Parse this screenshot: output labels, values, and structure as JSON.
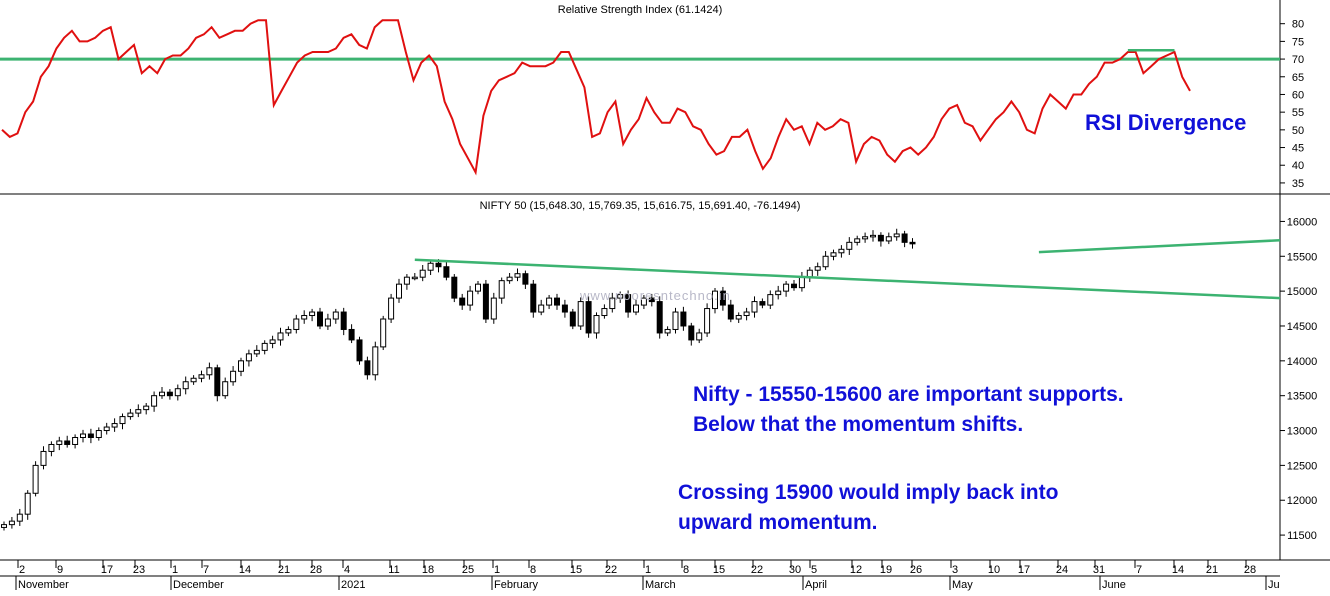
{
  "chart_data": [
    {
      "type": "line",
      "title": "Relative Strength Index (61.1424)",
      "ylim": [
        33,
        85
      ],
      "yticks": [
        35,
        40,
        45,
        50,
        55,
        60,
        65,
        70,
        75,
        80
      ],
      "reference_line": 70,
      "series": [
        {
          "values": [
            50,
            48,
            49,
            55,
            58,
            65,
            68,
            73,
            76,
            78,
            75,
            75,
            76,
            78,
            79,
            70,
            72,
            74,
            66,
            68,
            66,
            70,
            71,
            71,
            73,
            76,
            77,
            79,
            76,
            77,
            78,
            78,
            80,
            81,
            81,
            57,
            61,
            65,
            69,
            71,
            72,
            72,
            72,
            73,
            76,
            77,
            74,
            73,
            79,
            81,
            81,
            81,
            72,
            64,
            69,
            71,
            68,
            58,
            53,
            46,
            42,
            38,
            54,
            61,
            64,
            65,
            66,
            69,
            68,
            68,
            68,
            69,
            72,
            72,
            67,
            62,
            48,
            49,
            55,
            58,
            46,
            50,
            53,
            59,
            55,
            52,
            52,
            56,
            55,
            51,
            50,
            46,
            43,
            44,
            48,
            48,
            50,
            44,
            39,
            42,
            48,
            53,
            50,
            51,
            46,
            52,
            50,
            51,
            53,
            52,
            41,
            46,
            48,
            47,
            43,
            41,
            44,
            45,
            43,
            45,
            48,
            53,
            56,
            57,
            52,
            51,
            47,
            50,
            53,
            55,
            58,
            55,
            50,
            49,
            56,
            60,
            58,
            56,
            60,
            60,
            63,
            65,
            69,
            69,
            70,
            72,
            72,
            66,
            68,
            70,
            71,
            72,
            65,
            61
          ]
        }
      ]
    },
    {
      "type": "candlestick",
      "title": "NIFTY 50 (15,648.30, 15,769.35, 15,616.75, 15,691.40, -76.1494)",
      "ylim": [
        11200,
        16250
      ],
      "yticks": [
        11500,
        12000,
        12500,
        13000,
        13500,
        14000,
        14500,
        15000,
        15500,
        16000
      ],
      "x_day_labels": [
        "2",
        "9",
        "17",
        "23",
        "1",
        "7",
        "14",
        "21",
        "28",
        "4",
        "11",
        "18",
        "25",
        "1",
        "8",
        "15",
        "22",
        "1",
        "8",
        "15",
        "22",
        "30",
        "5",
        "12",
        "19",
        "26",
        "3",
        "10",
        "17",
        "24",
        "31",
        "7",
        "14",
        "21",
        "28"
      ],
      "x_month_labels": [
        "November",
        "December",
        "2021",
        "February",
        "March",
        "April",
        "May",
        "June",
        "Ju"
      ],
      "closes": [
        11650,
        11700,
        11800,
        12100,
        12500,
        12700,
        12800,
        12850,
        12800,
        12900,
        12950,
        12900,
        13000,
        13050,
        13100,
        13200,
        13250,
        13300,
        13350,
        13500,
        13550,
        13500,
        13600,
        13700,
        13750,
        13800,
        13900,
        13500,
        13700,
        13850,
        14000,
        14100,
        14150,
        14250,
        14300,
        14400,
        14450,
        14600,
        14650,
        14700,
        14500,
        14600,
        14700,
        14450,
        14300,
        14000,
        13800,
        14200,
        14600,
        14900,
        15100,
        15200,
        15200,
        15300,
        15400,
        15350,
        15200,
        14900,
        14800,
        15000,
        15100,
        14600,
        14900,
        15150,
        15200,
        15250,
        15100,
        14700,
        14800,
        14900,
        14800,
        14700,
        14500,
        14850,
        14400,
        14650,
        14750,
        14900,
        14950,
        14700,
        14800,
        14900,
        14850,
        14400,
        14450,
        14700,
        14500,
        14300,
        14400,
        14750,
        15000,
        14800,
        14600,
        14650,
        14700,
        14850,
        14800,
        14950,
        15000,
        15100,
        15050,
        15200,
        15300,
        15350,
        15500,
        15550,
        15600,
        15700,
        15750,
        15780,
        15800,
        15720,
        15780,
        15820,
        15700,
        15690
      ],
      "trendlines": [
        {
          "from": {
            "x": 52,
            "y": 15450
          },
          "to": {
            "x": 141,
            "y": 14900
          }
        },
        {
          "from": {
            "x": 131,
            "y": 15560
          },
          "to": {
            "x": 141,
            "y": 15730
          }
        }
      ]
    }
  ],
  "annotations": {
    "rsi_divergence": "RSI Divergence",
    "supports_line1": "Nifty - 15550-15600 are important supports.",
    "supports_line2": "Below that the momentum shifts.",
    "crossing_line1": "Crossing 15900 would imply back into",
    "crossing_line2": "upward momentum."
  },
  "watermark": "www.nooresntechno.in",
  "colors": {
    "rsi_line": "#e01010",
    "reference_line": "#3cb371",
    "trendline": "#3cb371",
    "annotation_text": "#1010d8"
  }
}
